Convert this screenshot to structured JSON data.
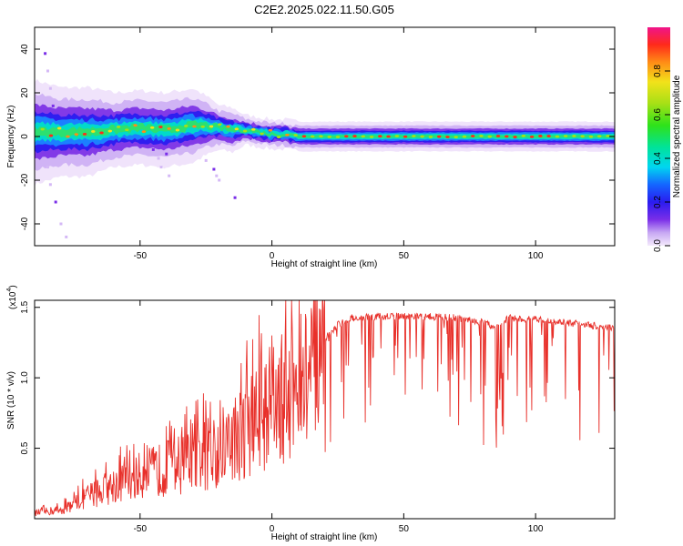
{
  "title": "C2E2.2025.022.11.50.G05",
  "chart_data": [
    {
      "type": "heatmap",
      "xlabel": "Height of straight line (km)",
      "ylabel": "Frequency (Hz)",
      "xlim": [
        -90,
        130
      ],
      "ylim": [
        -50,
        50
      ],
      "xticks": [
        -50,
        0,
        50,
        100
      ],
      "yticks": [
        -40,
        -20,
        0,
        20,
        40
      ],
      "colorbar": {
        "label": "Normalized spectral amplitude",
        "range": [
          0,
          1
        ],
        "ticks": [
          0.0,
          0.2,
          0.4,
          0.6,
          0.8
        ]
      },
      "ridge": {
        "description_free": true,
        "x": [
          -90,
          -80,
          -70,
          -60,
          -50,
          -40,
          -30,
          -25,
          -20,
          -15,
          -10,
          -5,
          0,
          5,
          10,
          20,
          30,
          50,
          75,
          100,
          130
        ],
        "center_hz": [
          2,
          2,
          2,
          3,
          4,
          3,
          5,
          5,
          4,
          3,
          3,
          2,
          1,
          1,
          0,
          0,
          0,
          0,
          0,
          0,
          0
        ],
        "half_width_hz": [
          7,
          6,
          6,
          5,
          5,
          5,
          5,
          4,
          3,
          3,
          2,
          2,
          2,
          2,
          2,
          2,
          2,
          2,
          2,
          2,
          2
        ]
      },
      "scatter": {
        "x": [
          -86,
          -85,
          -84,
          -83,
          -85,
          -84,
          -82,
          -80,
          -78,
          -45,
          -43,
          -42,
          -40,
          -39,
          -25,
          -22,
          -21,
          -20,
          -14
        ],
        "y": [
          38,
          30,
          22,
          14,
          -14,
          -22,
          -30,
          -40,
          -46,
          -6,
          -10,
          -14,
          -8,
          -18,
          -11,
          -15,
          -18,
          -20,
          -28
        ]
      }
    },
    {
      "type": "line",
      "xlabel": "Height of straight line (km)",
      "ylabel": "SNR (10 * v/v)",
      "yscale_label": "(x10",
      "yscale_exp": "4",
      "xlim": [
        -90,
        130
      ],
      "ylim": [
        0.0,
        1.55
      ],
      "xticks": [
        -50,
        0,
        50,
        100
      ],
      "yticks": [
        0.5,
        1.0,
        1.5
      ],
      "color": "#e8302a",
      "series": [
        {
          "x": [
            -90,
            -80,
            -70,
            -60,
            -50,
            -40,
            -30,
            -20,
            -10,
            -5,
            0,
            5,
            10,
            15,
            20,
            25,
            30,
            40,
            50,
            60,
            70,
            80,
            85,
            90,
            100,
            110,
            120,
            130
          ],
          "y": [
            0.05,
            0.08,
            0.2,
            0.3,
            0.38,
            0.45,
            0.52,
            0.62,
            0.8,
            0.92,
            1.0,
            1.08,
            1.18,
            1.25,
            1.3,
            1.4,
            1.45,
            1.46,
            1.46,
            1.46,
            1.45,
            1.42,
            1.38,
            1.45,
            1.44,
            1.42,
            1.4,
            1.38
          ]
        }
      ]
    }
  ]
}
